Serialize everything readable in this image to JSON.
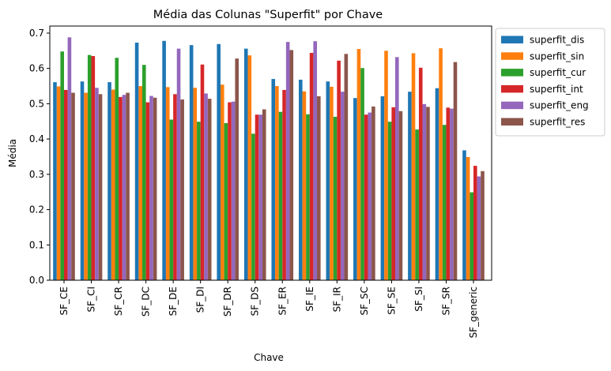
{
  "chart_data": {
    "type": "bar",
    "title": "Média das Colunas \"Superfit\" por Chave",
    "xlabel": "Chave",
    "ylabel": "Média",
    "ylim": [
      0,
      0.72
    ],
    "yticks": [
      "0.0",
      "0.1",
      "0.2",
      "0.3",
      "0.4",
      "0.5",
      "0.6",
      "0.7"
    ],
    "ytick_values": [
      0,
      0.1,
      0.2,
      0.3,
      0.4,
      0.5,
      0.6,
      0.7
    ],
    "grid": false,
    "legend_position": "outside-top-right",
    "categories": [
      "SF_CE",
      "SF_CI",
      "SF_CR",
      "SF_DC",
      "SF_DE",
      "SF_DI",
      "SF_DR",
      "SF_DS",
      "SF_ER",
      "SF_IE",
      "SF_IR",
      "SF_SC",
      "SF_SE",
      "SF_SI",
      "SF_SR",
      "SF_generic"
    ],
    "series": [
      {
        "name": "superfit_dis",
        "color": "#1f77b4",
        "values": [
          0.561,
          0.563,
          0.561,
          0.673,
          0.678,
          0.666,
          0.669,
          0.656,
          0.57,
          0.568,
          0.563,
          0.516,
          0.521,
          0.534,
          0.544,
          0.368
        ]
      },
      {
        "name": "superfit_sin",
        "color": "#ff7f0e",
        "values": [
          0.549,
          0.531,
          0.54,
          0.55,
          0.547,
          0.545,
          0.554,
          0.637,
          0.55,
          0.535,
          0.548,
          0.655,
          0.65,
          0.643,
          0.657,
          0.349
        ]
      },
      {
        "name": "superfit_cur",
        "color": "#2ca02c",
        "values": [
          0.648,
          0.638,
          0.63,
          0.61,
          0.455,
          0.449,
          0.445,
          0.415,
          0.477,
          0.47,
          0.463,
          0.601,
          0.449,
          0.427,
          0.44,
          0.249
        ]
      },
      {
        "name": "superfit_int",
        "color": "#d62728",
        "values": [
          0.539,
          0.635,
          0.519,
          0.504,
          0.527,
          0.611,
          0.504,
          0.469,
          0.539,
          0.644,
          0.622,
          0.469,
          0.49,
          0.602,
          0.489,
          0.324
        ]
      },
      {
        "name": "superfit_eng",
        "color": "#9467bd",
        "values": [
          0.688,
          0.545,
          0.525,
          0.522,
          0.656,
          0.529,
          0.506,
          0.469,
          0.675,
          0.677,
          0.534,
          0.475,
          0.632,
          0.499,
          0.486,
          0.294
        ]
      },
      {
        "name": "superfit_res",
        "color": "#8c564b",
        "values": [
          0.531,
          0.527,
          0.531,
          0.517,
          0.512,
          0.514,
          0.628,
          0.484,
          0.652,
          0.521,
          0.641,
          0.492,
          0.479,
          0.491,
          0.618,
          0.309
        ]
      }
    ]
  }
}
